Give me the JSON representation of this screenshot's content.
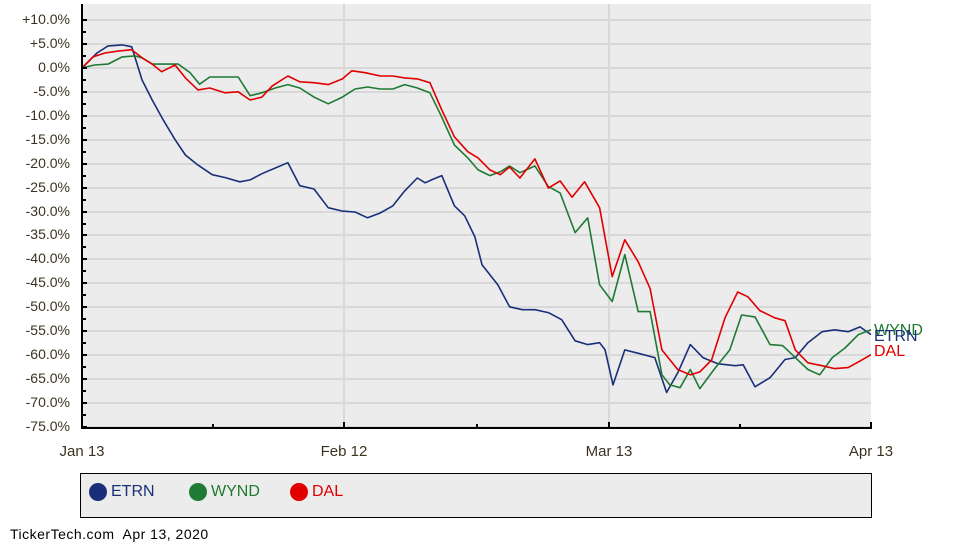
{
  "chart_data": {
    "type": "line",
    "title": "",
    "xlabel": "",
    "ylabel": "",
    "ylim": [
      -75,
      10
    ],
    "y_ticks": [
      "+10.0%",
      "+5.0%",
      "0.0%",
      "-5.0%",
      "-10.0%",
      "-15.0%",
      "-20.0%",
      "-25.0%",
      "-30.0%",
      "-35.0%",
      "-40.0%",
      "-45.0%",
      "-50.0%",
      "-55.0%",
      "-60.0%",
      "-65.0%",
      "-70.0%",
      "-75.0%"
    ],
    "x_ticks": [
      "Jan 13",
      "Feb 12",
      "Mar 13",
      "Apr 13"
    ],
    "grid": true,
    "legend_position": "bottom",
    "x_note": "x values are fractional position across Jan 13 (0) to Apr 13 (1)",
    "series": [
      {
        "name": "ETRN",
        "color": "#1a2f7a",
        "end_label": "ETRN",
        "points": [
          [
            0,
            0
          ],
          [
            0.019,
            3.1
          ],
          [
            0.033,
            4.6
          ],
          [
            0.051,
            4.8
          ],
          [
            0.063,
            4.4
          ],
          [
            0.076,
            -2.5
          ],
          [
            0.089,
            -6.7
          ],
          [
            0.103,
            -10.9
          ],
          [
            0.118,
            -15
          ],
          [
            0.131,
            -18.2
          ],
          [
            0.147,
            -20.3
          ],
          [
            0.165,
            -22.3
          ],
          [
            0.181,
            -22.9
          ],
          [
            0.2,
            -23.8
          ],
          [
            0.213,
            -23.4
          ],
          [
            0.228,
            -22.1
          ],
          [
            0.245,
            -20.9
          ],
          [
            0.261,
            -19.8
          ],
          [
            0.276,
            -24.6
          ],
          [
            0.294,
            -25.3
          ],
          [
            0.312,
            -29.2
          ],
          [
            0.33,
            -29.9
          ],
          [
            0.346,
            -30.1
          ],
          [
            0.362,
            -31.3
          ],
          [
            0.378,
            -30.3
          ],
          [
            0.394,
            -28.8
          ],
          [
            0.409,
            -25.7
          ],
          [
            0.425,
            -23
          ],
          [
            0.435,
            -24
          ],
          [
            0.443,
            -23.4
          ],
          [
            0.456,
            -22.5
          ],
          [
            0.472,
            -28.8
          ],
          [
            0.485,
            -30.9
          ],
          [
            0.498,
            -35.3
          ],
          [
            0.507,
            -41.1
          ],
          [
            0.527,
            -45.3
          ],
          [
            0.542,
            -49.9
          ],
          [
            0.558,
            -50.5
          ],
          [
            0.574,
            -50.5
          ],
          [
            0.591,
            -51.1
          ],
          [
            0.608,
            -52.6
          ],
          [
            0.625,
            -57
          ],
          [
            0.641,
            -57.8
          ],
          [
            0.656,
            -57.4
          ],
          [
            0.663,
            -58.9
          ],
          [
            0.673,
            -66.2
          ],
          [
            0.688,
            -58.9
          ],
          [
            0.707,
            -59.7
          ],
          [
            0.726,
            -60.5
          ],
          [
            0.741,
            -67.8
          ],
          [
            0.755,
            -63.7
          ],
          [
            0.771,
            -57.8
          ],
          [
            0.787,
            -60.5
          ],
          [
            0.806,
            -61.8
          ],
          [
            0.828,
            -62.2
          ],
          [
            0.838,
            -62
          ],
          [
            0.853,
            -66.6
          ],
          [
            0.872,
            -64.7
          ],
          [
            0.891,
            -60.9
          ],
          [
            0.904,
            -60.5
          ],
          [
            0.92,
            -57.4
          ],
          [
            0.938,
            -55.1
          ],
          [
            0.954,
            -54.7
          ],
          [
            0.971,
            -55.1
          ],
          [
            0.986,
            -54.1
          ],
          [
            1,
            -55.7
          ]
        ]
      },
      {
        "name": "WYND",
        "color": "#1f7a33",
        "end_label": "WYND",
        "points": [
          [
            0,
            0
          ],
          [
            0.016,
            0.6
          ],
          [
            0.033,
            0.8
          ],
          [
            0.051,
            2.3
          ],
          [
            0.067,
            2.5
          ],
          [
            0.076,
            2.1
          ],
          [
            0.089,
            0.8
          ],
          [
            0.105,
            0.8
          ],
          [
            0.122,
            0.8
          ],
          [
            0.137,
            -1
          ],
          [
            0.149,
            -3.4
          ],
          [
            0.162,
            -1.9
          ],
          [
            0.181,
            -1.9
          ],
          [
            0.198,
            -1.9
          ],
          [
            0.213,
            -5.8
          ],
          [
            0.228,
            -5.2
          ],
          [
            0.245,
            -4.2
          ],
          [
            0.261,
            -3.5
          ],
          [
            0.276,
            -4.2
          ],
          [
            0.294,
            -6.1
          ],
          [
            0.312,
            -7.5
          ],
          [
            0.33,
            -6.1
          ],
          [
            0.346,
            -4.4
          ],
          [
            0.362,
            -4
          ],
          [
            0.378,
            -4.4
          ],
          [
            0.394,
            -4.4
          ],
          [
            0.409,
            -3.5
          ],
          [
            0.425,
            -4.2
          ],
          [
            0.441,
            -5.2
          ],
          [
            0.454,
            -9.6
          ],
          [
            0.472,
            -16.1
          ],
          [
            0.489,
            -18.8
          ],
          [
            0.502,
            -21.3
          ],
          [
            0.517,
            -22.5
          ],
          [
            0.53,
            -21.7
          ],
          [
            0.542,
            -20.5
          ],
          [
            0.555,
            -21.9
          ],
          [
            0.574,
            -20.5
          ],
          [
            0.591,
            -24.8
          ],
          [
            0.606,
            -26.1
          ],
          [
            0.625,
            -34.4
          ],
          [
            0.641,
            -31.3
          ],
          [
            0.656,
            -45.3
          ],
          [
            0.672,
            -48.8
          ],
          [
            0.688,
            -39
          ],
          [
            0.705,
            -50.9
          ],
          [
            0.72,
            -50.9
          ],
          [
            0.735,
            -64.1
          ],
          [
            0.745,
            -66.2
          ],
          [
            0.758,
            -66.8
          ],
          [
            0.771,
            -63
          ],
          [
            0.783,
            -67
          ],
          [
            0.801,
            -63
          ],
          [
            0.821,
            -58.9
          ],
          [
            0.836,
            -51.6
          ],
          [
            0.853,
            -52
          ],
          [
            0.872,
            -57.8
          ],
          [
            0.888,
            -58
          ],
          [
            0.904,
            -60.5
          ],
          [
            0.92,
            -63
          ],
          [
            0.935,
            -64.1
          ],
          [
            0.951,
            -60.5
          ],
          [
            0.967,
            -58.5
          ],
          [
            0.984,
            -55.7
          ],
          [
            1,
            -54.7
          ]
        ]
      },
      {
        "name": "DAL",
        "color": "#e00000",
        "end_label": "DAL",
        "points": [
          [
            0,
            0
          ],
          [
            0.014,
            2.3
          ],
          [
            0.029,
            3.1
          ],
          [
            0.046,
            3.5
          ],
          [
            0.063,
            3.8
          ],
          [
            0.076,
            2.1
          ],
          [
            0.089,
            0.8
          ],
          [
            0.101,
            -0.8
          ],
          [
            0.118,
            0.6
          ],
          [
            0.131,
            -2.1
          ],
          [
            0.147,
            -4.6
          ],
          [
            0.162,
            -4.2
          ],
          [
            0.181,
            -5.2
          ],
          [
            0.198,
            -5
          ],
          [
            0.213,
            -6.7
          ],
          [
            0.228,
            -6.1
          ],
          [
            0.241,
            -3.8
          ],
          [
            0.261,
            -1.7
          ],
          [
            0.276,
            -2.9
          ],
          [
            0.294,
            -3.1
          ],
          [
            0.312,
            -3.5
          ],
          [
            0.33,
            -2.3
          ],
          [
            0.342,
            -0.6
          ],
          [
            0.359,
            -1
          ],
          [
            0.378,
            -1.7
          ],
          [
            0.394,
            -1.7
          ],
          [
            0.409,
            -2.1
          ],
          [
            0.425,
            -2.3
          ],
          [
            0.441,
            -3.1
          ],
          [
            0.456,
            -8.8
          ],
          [
            0.472,
            -14.4
          ],
          [
            0.489,
            -17.5
          ],
          [
            0.502,
            -18.8
          ],
          [
            0.517,
            -21.3
          ],
          [
            0.53,
            -22.3
          ],
          [
            0.542,
            -20.7
          ],
          [
            0.555,
            -23
          ],
          [
            0.574,
            -19
          ],
          [
            0.591,
            -25.1
          ],
          [
            0.606,
            -23.6
          ],
          [
            0.621,
            -27
          ],
          [
            0.637,
            -23.8
          ],
          [
            0.656,
            -29.2
          ],
          [
            0.672,
            -43.6
          ],
          [
            0.688,
            -35.9
          ],
          [
            0.705,
            -40.5
          ],
          [
            0.72,
            -46.1
          ],
          [
            0.735,
            -58.9
          ],
          [
            0.755,
            -63
          ],
          [
            0.771,
            -64.1
          ],
          [
            0.783,
            -63.5
          ],
          [
            0.798,
            -61
          ],
          [
            0.815,
            -52.2
          ],
          [
            0.831,
            -46.8
          ],
          [
            0.844,
            -47.8
          ],
          [
            0.859,
            -50.7
          ],
          [
            0.878,
            -52.2
          ],
          [
            0.891,
            -52.8
          ],
          [
            0.904,
            -58.9
          ],
          [
            0.92,
            -61.6
          ],
          [
            0.938,
            -62.2
          ],
          [
            0.954,
            -62.8
          ],
          [
            0.971,
            -62.6
          ],
          [
            0.984,
            -61.4
          ],
          [
            1,
            -59.9
          ]
        ]
      }
    ]
  },
  "legend": {
    "items": [
      {
        "label": "ETRN",
        "color": "#1a2f7a"
      },
      {
        "label": "WYND",
        "color": "#1f7a33"
      },
      {
        "label": "DAL",
        "color": "#e00000"
      }
    ]
  },
  "footer": {
    "text": "TickerTech.com  Apr 13, 2020"
  }
}
